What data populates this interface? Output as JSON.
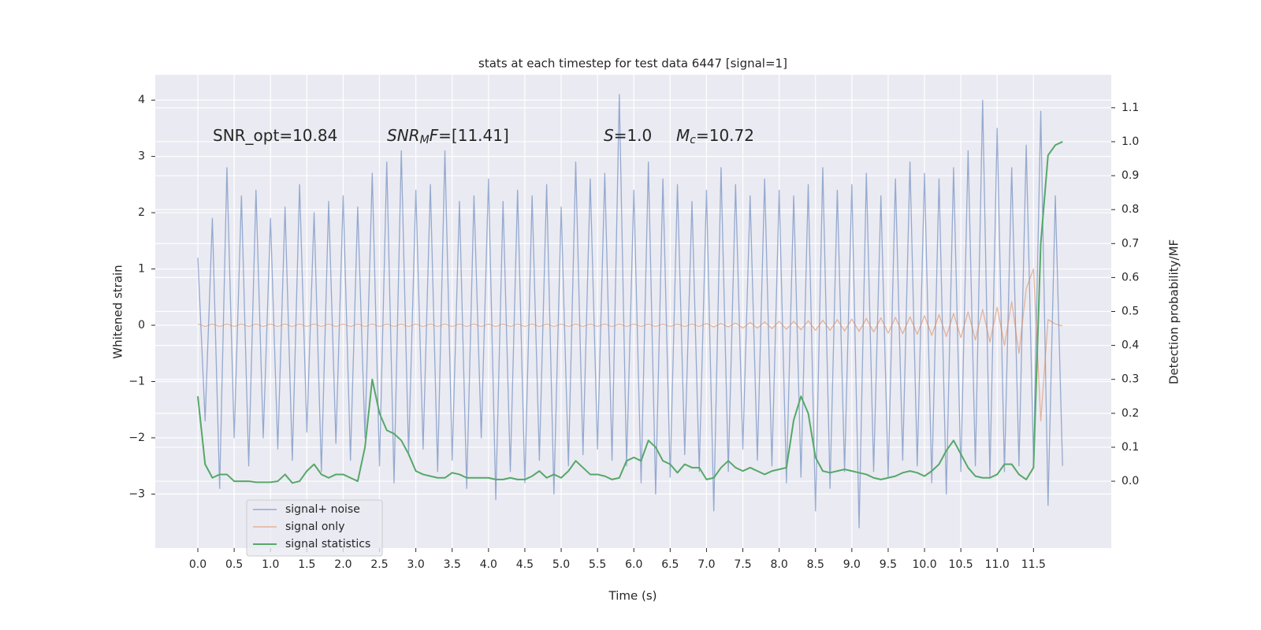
{
  "chart_data": {
    "type": "line",
    "title": "stats at each timestep for test data 6447 [signal=1]",
    "xlabel": "Time (s)",
    "ylabel": "Whitened strain",
    "y2label": "Detection probability/MF",
    "annotations": [
      {
        "text": "SNR_opt=10.84"
      },
      {
        "italic": "SNR",
        "sub": "M",
        "italic2": "F",
        "text": "=[11.41]"
      },
      {
        "italic": "S",
        "text": "=1.0"
      },
      {
        "italic": "M",
        "sub": "c",
        "text": "=10.72"
      }
    ],
    "x": [
      0,
      0.1,
      0.2,
      0.3,
      0.4,
      0.5,
      0.6,
      0.7,
      0.8,
      0.9,
      1,
      1.1,
      1.2,
      1.3,
      1.4,
      1.5,
      1.6,
      1.7,
      1.8,
      1.9,
      2,
      2.1,
      2.2,
      2.3,
      2.4,
      2.5,
      2.6,
      2.7,
      2.8,
      2.9,
      3,
      3.1,
      3.2,
      3.3,
      3.4,
      3.5,
      3.6,
      3.7,
      3.8,
      3.9,
      4,
      4.1,
      4.2,
      4.3,
      4.4,
      4.5,
      4.6,
      4.7,
      4.8,
      4.9,
      5,
      5.1,
      5.2,
      5.3,
      5.4,
      5.5,
      5.6,
      5.7,
      5.8,
      5.9,
      6,
      6.1,
      6.2,
      6.3,
      6.4,
      6.5,
      6.6,
      6.7,
      6.8,
      6.9,
      7,
      7.1,
      7.2,
      7.3,
      7.4,
      7.5,
      7.6,
      7.7,
      7.8,
      7.9,
      8,
      8.1,
      8.2,
      8.3,
      8.4,
      8.5,
      8.6,
      8.7,
      8.8,
      8.9,
      9,
      9.1,
      9.2,
      9.3,
      9.4,
      9.5,
      9.6,
      9.7,
      9.8,
      9.9,
      10,
      10.1,
      10.2,
      10.3,
      10.4,
      10.5,
      10.6,
      10.7,
      10.8,
      10.9,
      11,
      11.1,
      11.2,
      11.3,
      11.4,
      11.5,
      11.6,
      11.7,
      11.8,
      11.9
    ],
    "series": [
      {
        "name": "signal+ noise",
        "color": "#4c72b0",
        "values": [
          1.2,
          -1.7,
          1.9,
          -2.9,
          2.8,
          -2.0,
          2.3,
          -2.5,
          2.4,
          -2.0,
          1.9,
          -2.2,
          2.1,
          -2.4,
          2.5,
          -1.9,
          2.0,
          -2.6,
          2.2,
          -2.1,
          2.3,
          -2.4,
          2.1,
          -2.0,
          2.7,
          -2.5,
          2.9,
          -2.8,
          3.1,
          -2.3,
          2.4,
          -2.2,
          2.5,
          -2.6,
          3.1,
          -2.4,
          2.2,
          -2.9,
          2.3,
          -2.0,
          2.6,
          -3.1,
          2.2,
          -2.6,
          2.4,
          -2.8,
          2.3,
          -2.4,
          2.5,
          -3.0,
          2.1,
          -2.5,
          2.9,
          -2.3,
          2.6,
          -2.2,
          2.7,
          -2.4,
          4.1,
          -2.5,
          2.4,
          -2.8,
          2.9,
          -3.0,
          2.6,
          -2.7,
          2.5,
          -2.3,
          2.2,
          -2.6,
          2.4,
          -3.3,
          2.8,
          -2.6,
          2.5,
          -2.2,
          2.3,
          -2.4,
          2.6,
          -2.5,
          2.4,
          -2.8,
          2.3,
          -2.7,
          2.5,
          -3.3,
          2.8,
          -2.9,
          2.4,
          -2.6,
          2.5,
          -3.6,
          2.7,
          -2.6,
          2.3,
          -2.7,
          2.6,
          -2.4,
          2.9,
          -2.5,
          2.7,
          -2.8,
          2.6,
          -3.0,
          2.8,
          -2.6,
          3.1,
          -2.5,
          4.0,
          -2.7,
          3.5,
          -2.6,
          2.8,
          -2.5,
          3.2,
          -2.4,
          3.8,
          -3.2,
          2.3,
          -2.5
        ]
      },
      {
        "name": "signal only",
        "color": "#dd8452",
        "values": [
          0.02,
          -0.02,
          0.02,
          -0.02,
          0.02,
          -0.02,
          0.02,
          -0.02,
          0.02,
          -0.02,
          0.02,
          -0.02,
          0.02,
          -0.02,
          0.02,
          -0.02,
          0.02,
          -0.02,
          0.02,
          -0.02,
          0.02,
          -0.02,
          0.02,
          -0.02,
          0.02,
          -0.02,
          0.02,
          -0.02,
          0.02,
          -0.02,
          0.02,
          -0.02,
          0.02,
          -0.02,
          0.02,
          -0.02,
          0.02,
          -0.02,
          0.02,
          -0.02,
          0.02,
          -0.02,
          0.02,
          -0.02,
          0.02,
          -0.02,
          0.02,
          -0.02,
          0.02,
          -0.02,
          0.02,
          -0.02,
          0.02,
          -0.02,
          0.02,
          -0.02,
          0.02,
          -0.02,
          0.02,
          -0.02,
          0.02,
          -0.02,
          0.02,
          -0.02,
          0.02,
          -0.02,
          0.02,
          -0.02,
          0.02,
          -0.02,
          0.03,
          -0.03,
          0.03,
          -0.03,
          0.04,
          -0.05,
          0.05,
          -0.05,
          0.06,
          -0.06,
          0.07,
          -0.07,
          0.07,
          -0.08,
          0.08,
          -0.09,
          0.09,
          -0.09,
          0.1,
          -0.1,
          0.11,
          -0.11,
          0.12,
          -0.12,
          0.13,
          -0.14,
          0.14,
          -0.15,
          0.15,
          -0.16,
          0.17,
          -0.18,
          0.19,
          -0.2,
          0.21,
          -0.22,
          0.24,
          -0.26,
          0.28,
          -0.3,
          0.32,
          -0.36,
          0.42,
          -0.5,
          0.65,
          1.0,
          -1.7,
          0.1,
          0.02,
          -0.01
        ]
      },
      {
        "name": "signal statistics",
        "color": "#55a868",
        "axis": "y2",
        "values": [
          0.25,
          0.05,
          0.01,
          0.02,
          0.02,
          0,
          0,
          0,
          -0.003,
          -0.003,
          -0.003,
          0,
          0.02,
          -0.005,
          0,
          0.03,
          0.05,
          0.02,
          0.01,
          0.02,
          0.02,
          0.01,
          0,
          0.1,
          0.3,
          0.2,
          0.15,
          0.14,
          0.12,
          0.08,
          0.03,
          0.02,
          0.015,
          0.01,
          0.01,
          0.025,
          0.02,
          0.01,
          0.01,
          0.01,
          0.01,
          0.005,
          0.005,
          0.01,
          0.005,
          0.005,
          0.015,
          0.03,
          0.01,
          0.02,
          0.01,
          0.03,
          0.06,
          0.04,
          0.02,
          0.02,
          0.015,
          0.005,
          0.01,
          0.06,
          0.07,
          0.06,
          0.12,
          0.1,
          0.06,
          0.05,
          0.025,
          0.05,
          0.04,
          0.04,
          0.005,
          0.01,
          0.04,
          0.06,
          0.04,
          0.03,
          0.04,
          0.03,
          0.02,
          0.03,
          0.035,
          0.04,
          0.18,
          0.25,
          0.2,
          0.07,
          0.03,
          0.025,
          0.03,
          0.035,
          0.03,
          0.025,
          0.02,
          0.01,
          0.005,
          0.01,
          0.015,
          0.025,
          0.03,
          0.025,
          0.015,
          0.03,
          0.05,
          0.09,
          0.12,
          0.08,
          0.04,
          0.015,
          0.01,
          0.01,
          0.02,
          0.05,
          0.05,
          0.02,
          0.005,
          0.04,
          0.7,
          0.96,
          0.99,
          1.0
        ]
      }
    ],
    "xlim": [
      -0.586,
      12.57
    ],
    "xticks": [
      {
        "value": 0,
        "label": "0.0"
      },
      0.5,
      {
        "value": 1,
        "label": "1.0"
      },
      1.5,
      {
        "value": 2,
        "label": "2.0"
      },
      2.5,
      {
        "value": 3,
        "label": "3.0"
      },
      3.5,
      {
        "value": 4,
        "label": "4.0"
      },
      4.5,
      {
        "value": 5,
        "label": "5.0"
      },
      5.5,
      {
        "value": 6,
        "label": "6.0"
      },
      6.5,
      {
        "value": 7,
        "label": "7.0"
      },
      7.5,
      {
        "value": 8,
        "label": "8.0"
      },
      8.5,
      {
        "value": 9,
        "label": "9.0"
      },
      9.5,
      {
        "value": 10,
        "label": "10.0"
      },
      10.5,
      {
        "value": 11,
        "label": "11.0"
      },
      11.5
    ],
    "ylim": [
      -3.96,
      4.45
    ],
    "yticks": [
      {
        "value": -3,
        "label": "−3"
      },
      {
        "value": -2,
        "label": "−2"
      },
      {
        "value": -1,
        "label": "−1"
      },
      0,
      1,
      2,
      3,
      4
    ],
    "y2lim": [
      -0.197,
      1.197
    ],
    "y2ticks": [
      {
        "value": 0,
        "label": "0.0"
      },
      0.1,
      0.2,
      0.3,
      0.4,
      0.5,
      0.6,
      0.7,
      0.8,
      0.9,
      {
        "value": 1,
        "label": "1.0"
      },
      1.1
    ],
    "grid": true,
    "legend": "lower left"
  }
}
